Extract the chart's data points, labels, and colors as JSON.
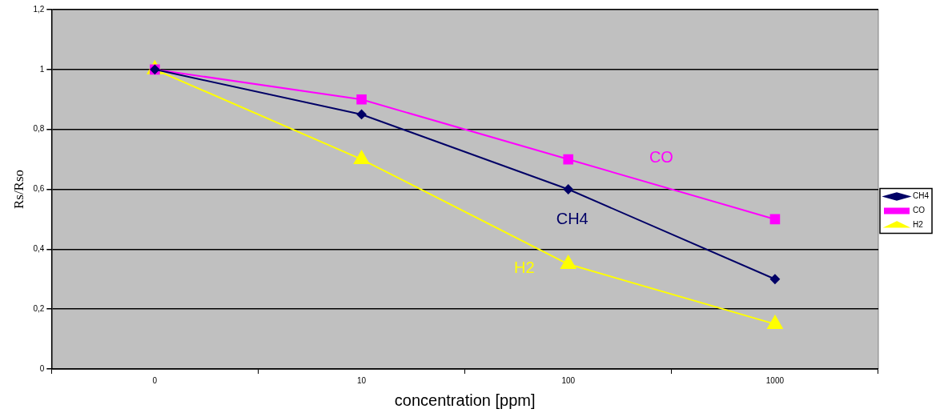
{
  "chart_data": {
    "type": "line",
    "xlabel": "concentration [ppm]",
    "ylabel": "Rs/Rso",
    "categories": [
      "0",
      "10",
      "100",
      "1000"
    ],
    "series": [
      {
        "name": "CH4",
        "color": "#000066",
        "marker": "diamond",
        "values": [
          1,
          0.85,
          0.6,
          0.3
        ]
      },
      {
        "name": "CO",
        "color": "#ff00ff",
        "marker": "square",
        "values": [
          1,
          0.9,
          0.7,
          0.5
        ]
      },
      {
        "name": "H2",
        "color": "#ffff00",
        "marker": "triangle",
        "values": [
          1,
          0.7,
          0.35,
          0.15
        ]
      }
    ],
    "ylim": [
      0,
      1.2
    ],
    "yticks": [
      0,
      {
        "value": 0.2,
        "label": "0,2"
      },
      {
        "value": 0.4,
        "label": "0,4"
      },
      {
        "value": 0.6,
        "label": "0,6"
      },
      {
        "value": 0.8,
        "label": "0,8"
      },
      1,
      {
        "value": 1.2,
        "label": "1,2"
      }
    ],
    "grid": "y",
    "legend": "right",
    "annotations": [
      "CH4",
      "CO",
      "H2"
    ]
  }
}
